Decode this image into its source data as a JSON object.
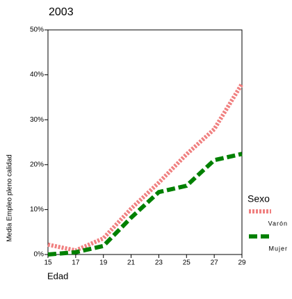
{
  "chart_data": {
    "type": "line",
    "title": "2003",
    "y_label": "Media Empleo pleno calidad",
    "x_label": "Edad",
    "x": [
      15,
      17,
      19,
      21,
      23,
      25,
      27,
      29
    ],
    "series": [
      {
        "name": "Varón",
        "color": "#f08080",
        "style": "dotted",
        "values": [
          2.2,
          0.9,
          3.6,
          10.2,
          16,
          22.3,
          27.9,
          38
        ]
      },
      {
        "name": "Mujer",
        "color": "#008000",
        "style": "dashed",
        "values": [
          0,
          0.5,
          1.9,
          8.2,
          13.9,
          15.3,
          21,
          22.4
        ]
      }
    ],
    "legend_title": "Sexo",
    "xlim": [
      15,
      29
    ],
    "xticks": [
      15,
      17,
      19,
      21,
      23,
      25,
      27,
      29
    ],
    "ylim": [
      0,
      50
    ],
    "yticks": [
      {
        "value": 0,
        "label": "0%"
      },
      {
        "value": 10,
        "label": "10%"
      },
      {
        "value": 20,
        "label": "20%"
      },
      {
        "value": 30,
        "label": "30%"
      },
      {
        "value": 40,
        "label": "40%"
      },
      {
        "value": 50,
        "label": "50%"
      }
    ]
  }
}
